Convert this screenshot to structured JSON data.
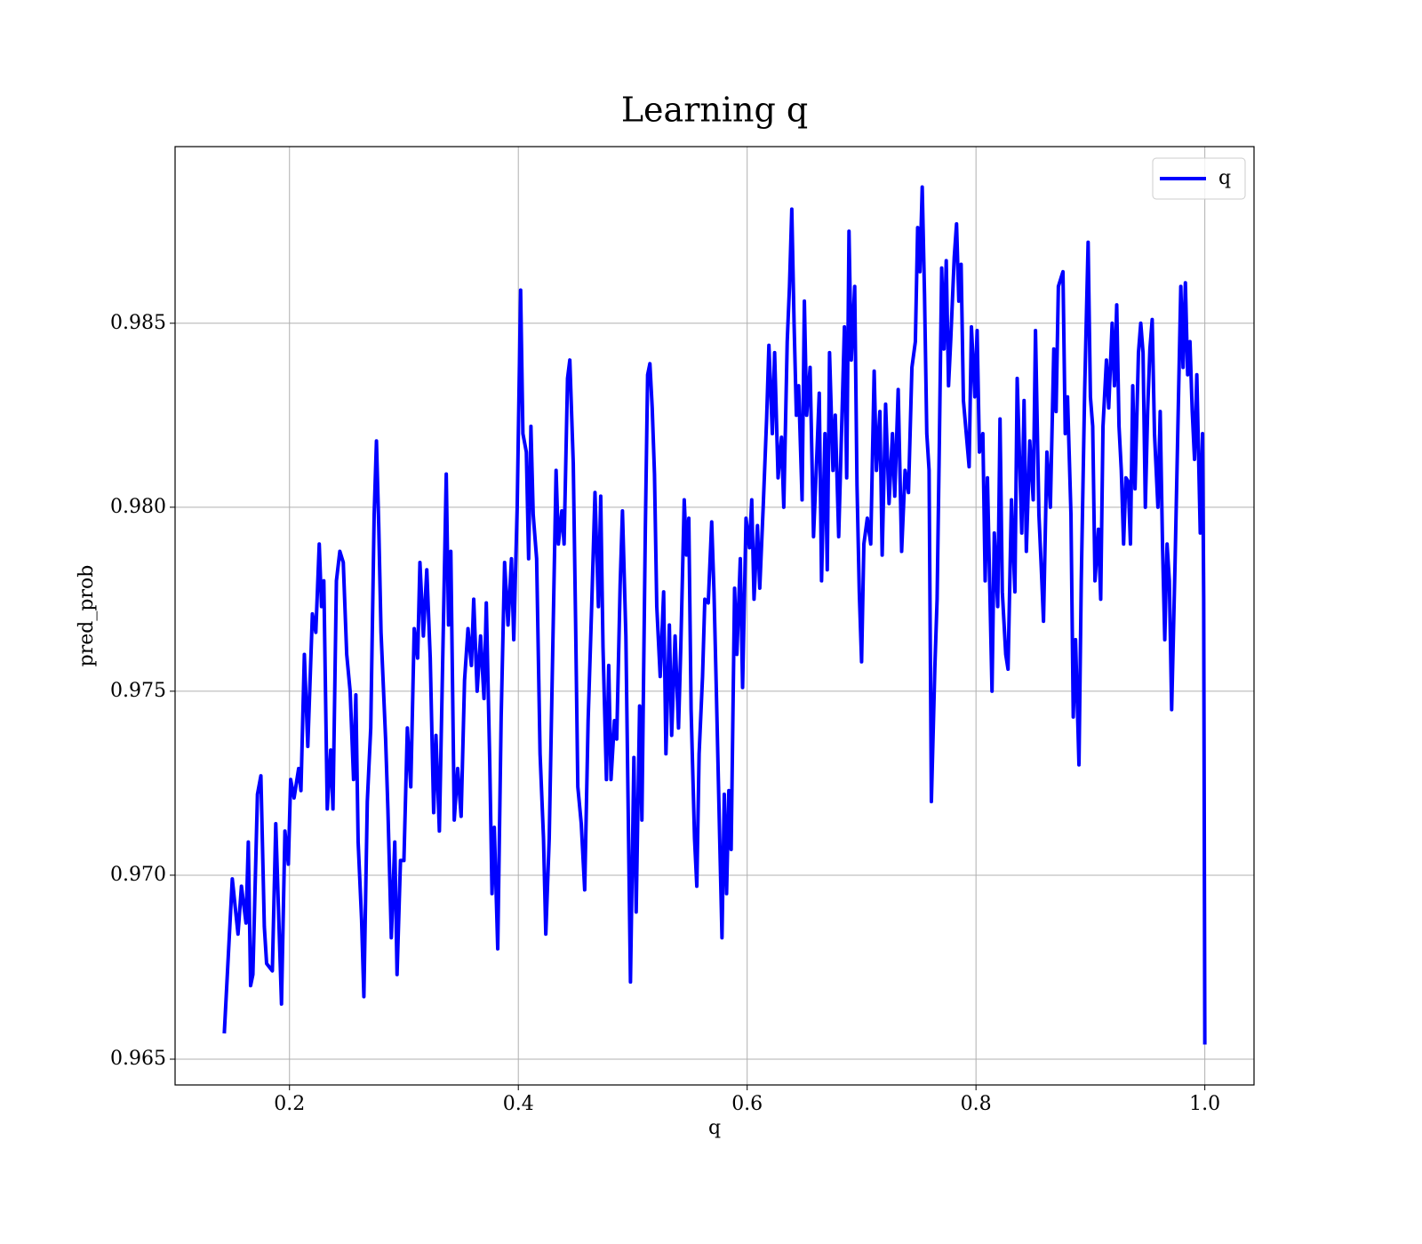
{
  "chart_data": {
    "type": "line",
    "title": "Learning q",
    "xlabel": "q",
    "ylabel": "pred_prob",
    "xlim": [
      0.1,
      1.043
    ],
    "ylim": [
      0.9643,
      0.9898
    ],
    "xticks": [
      0.2,
      0.4,
      0.6,
      0.8,
      {
        "value": 1,
        "label": "1.0"
      }
    ],
    "yticks": [
      0.965,
      {
        "value": 0.97,
        "label": "0.970"
      },
      0.975,
      {
        "value": 0.98,
        "label": "0.980"
      },
      0.985
    ],
    "grid": true,
    "legend": "upper right",
    "x": [
      0.143,
      0.15,
      0.155,
      0.158,
      0.162,
      0.164,
      0.166,
      0.168,
      0.172,
      0.175,
      0.178,
      0.18,
      0.185,
      0.188,
      0.193,
      0.196,
      0.199,
      0.201,
      0.204,
      0.208,
      0.21,
      0.213,
      0.216,
      0.22,
      0.223,
      0.226,
      0.228,
      0.23,
      0.233,
      0.236,
      0.238,
      0.241,
      0.244,
      0.247,
      0.25,
      0.253,
      0.256,
      0.258,
      0.26,
      0.263,
      0.265,
      0.268,
      0.271,
      0.274,
      0.276,
      0.278,
      0.28,
      0.284,
      0.286,
      0.289,
      0.292,
      0.294,
      0.297,
      0.3,
      0.303,
      0.306,
      0.309,
      0.312,
      0.314,
      0.317,
      0.32,
      0.323,
      0.326,
      0.328,
      0.331,
      0.335,
      0.337,
      0.339,
      0.341,
      0.344,
      0.347,
      0.35,
      0.353,
      0.356,
      0.359,
      0.361,
      0.364,
      0.367,
      0.37,
      0.372,
      0.375,
      0.377,
      0.379,
      0.382,
      0.385,
      0.388,
      0.391,
      0.394,
      0.396,
      0.399,
      0.402,
      0.404,
      0.407,
      0.409,
      0.411,
      0.413,
      0.416,
      0.419,
      0.422,
      0.424,
      0.427,
      0.43,
      0.433,
      0.435,
      0.438,
      0.44,
      0.443,
      0.445,
      0.448,
      0.45,
      0.452,
      0.455,
      0.458,
      0.461,
      0.464,
      0.467,
      0.47,
      0.472,
      0.474,
      0.477,
      0.479,
      0.481,
      0.484,
      0.486,
      0.489,
      0.491,
      0.494,
      0.496,
      0.498,
      0.501,
      0.503,
      0.506,
      0.508,
      0.511,
      0.513,
      0.515,
      0.517,
      0.519,
      0.521,
      0.524,
      0.527,
      0.529,
      0.532,
      0.534,
      0.537,
      0.54,
      0.542,
      0.545,
      0.547,
      0.549,
      0.551,
      0.554,
      0.556,
      0.558,
      0.561,
      0.563,
      0.566,
      0.569,
      0.571,
      0.573,
      0.576,
      0.578,
      0.58,
      0.582,
      0.584,
      0.586,
      0.589,
      0.591,
      0.594,
      0.596,
      0.599,
      0.602,
      0.604,
      0.606,
      0.609,
      0.611,
      0.614,
      0.617,
      0.619,
      0.622,
      0.624,
      0.627,
      0.63,
      0.632,
      0.635,
      0.637,
      0.639,
      0.641,
      0.643,
      0.645,
      0.648,
      0.65,
      0.652,
      0.655,
      0.658,
      0.661,
      0.663,
      0.665,
      0.668,
      0.67,
      0.672,
      0.675,
      0.677,
      0.68,
      0.682,
      0.685,
      0.687,
      0.689,
      0.691,
      0.694,
      0.696,
      0.698,
      0.7,
      0.702,
      0.705,
      0.708,
      0.711,
      0.713,
      0.716,
      0.718,
      0.721,
      0.724,
      0.727,
      0.729,
      0.732,
      0.735,
      0.738,
      0.741,
      0.744,
      0.747,
      0.749,
      0.751,
      0.753,
      0.755,
      0.757,
      0.759,
      0.761,
      0.764,
      0.766,
      0.768,
      0.77,
      0.772,
      0.774,
      0.776,
      0.778,
      0.781,
      0.783,
      0.785,
      0.787,
      0.789,
      0.794,
      0.796,
      0.799,
      0.801,
      0.803,
      0.806,
      0.808,
      0.81,
      0.814,
      0.816,
      0.819,
      0.821,
      0.823,
      0.826,
      0.828,
      0.831,
      0.834,
      0.836,
      0.84,
      0.842,
      0.844,
      0.847,
      0.85,
      0.852,
      0.855,
      0.857,
      0.859,
      0.862,
      0.865,
      0.868,
      0.87,
      0.872,
      0.876,
      0.878,
      0.88,
      0.883,
      0.885,
      0.887,
      0.89,
      0.892,
      0.895,
      0.898,
      0.9,
      0.902,
      0.904,
      0.907,
      0.909,
      0.911,
      0.914,
      0.916,
      0.919,
      0.921,
      0.923,
      0.925,
      0.927,
      0.929,
      0.931,
      0.933,
      0.935,
      0.937,
      0.939,
      0.942,
      0.944,
      0.946,
      0.948,
      0.95,
      0.952,
      0.954,
      0.956,
      0.959,
      0.961,
      0.963,
      0.965,
      0.967,
      0.969,
      0.971,
      0.974,
      0.976,
      0.979,
      0.981,
      0.983,
      0.985,
      0.987,
      0.989,
      0.991,
      0.993,
      0.996,
      0.998,
      0.999,
      1.0
    ],
    "series": [
      {
        "name": "q",
        "color": "#0000ff",
        "values": [
          0.9657,
          0.9699,
          0.9684,
          0.9697,
          0.9687,
          0.9709,
          0.967,
          0.9673,
          0.9722,
          0.9727,
          0.9686,
          0.9676,
          0.9674,
          0.9714,
          0.9665,
          0.9712,
          0.9703,
          0.9726,
          0.9721,
          0.9729,
          0.9723,
          0.976,
          0.9735,
          0.9771,
          0.9766,
          0.979,
          0.9773,
          0.978,
          0.9718,
          0.9734,
          0.9718,
          0.978,
          0.9788,
          0.9785,
          0.976,
          0.975,
          0.9726,
          0.9749,
          0.9709,
          0.9688,
          0.9667,
          0.972,
          0.974,
          0.9798,
          0.9818,
          0.9795,
          0.9766,
          0.9737,
          0.9718,
          0.9683,
          0.9709,
          0.9673,
          0.9704,
          0.9704,
          0.974,
          0.9724,
          0.9767,
          0.9759,
          0.9785,
          0.9765,
          0.9783,
          0.9759,
          0.9717,
          0.9738,
          0.9712,
          0.9776,
          0.9809,
          0.9768,
          0.9788,
          0.9715,
          0.9729,
          0.9716,
          0.9753,
          0.9767,
          0.9757,
          0.9775,
          0.975,
          0.9765,
          0.9748,
          0.9774,
          0.9731,
          0.9695,
          0.9713,
          0.968,
          0.9743,
          0.9785,
          0.9768,
          0.9786,
          0.9764,
          0.98,
          0.9859,
          0.982,
          0.9815,
          0.9786,
          0.9822,
          0.9798,
          0.9786,
          0.9733,
          0.971,
          0.9684,
          0.971,
          0.976,
          0.981,
          0.979,
          0.9799,
          0.979,
          0.9835,
          0.984,
          0.9812,
          0.977,
          0.9724,
          0.9714,
          0.9696,
          0.9742,
          0.9772,
          0.9804,
          0.9773,
          0.9803,
          0.9762,
          0.9726,
          0.9757,
          0.9726,
          0.9742,
          0.9737,
          0.9779,
          0.9799,
          0.9765,
          0.9718,
          0.9671,
          0.9732,
          0.969,
          0.9746,
          0.9715,
          0.9794,
          0.9836,
          0.9839,
          0.9827,
          0.9809,
          0.9773,
          0.9754,
          0.9777,
          0.9733,
          0.9768,
          0.9738,
          0.9765,
          0.974,
          0.9762,
          0.9802,
          0.9787,
          0.9797,
          0.9745,
          0.971,
          0.9697,
          0.9733,
          0.9754,
          0.9775,
          0.9774,
          0.9796,
          0.9777,
          0.9751,
          0.971,
          0.9683,
          0.9722,
          0.9695,
          0.9723,
          0.9707,
          0.9778,
          0.976,
          0.9786,
          0.9751,
          0.9797,
          0.9789,
          0.9802,
          0.9775,
          0.9795,
          0.9778,
          0.98,
          0.9824,
          0.9844,
          0.982,
          0.9842,
          0.9808,
          0.9819,
          0.98,
          0.9845,
          0.986,
          0.9881,
          0.985,
          0.9825,
          0.9833,
          0.9802,
          0.9856,
          0.9825,
          0.9838,
          0.9792,
          0.9815,
          0.9831,
          0.978,
          0.982,
          0.9783,
          0.9842,
          0.981,
          0.9825,
          0.9792,
          0.9815,
          0.9849,
          0.9808,
          0.9875,
          0.984,
          0.986,
          0.9806,
          0.9777,
          0.9758,
          0.979,
          0.9797,
          0.979,
          0.9837,
          0.981,
          0.9826,
          0.9787,
          0.9828,
          0.9801,
          0.982,
          0.9803,
          0.9832,
          0.9788,
          0.981,
          0.9804,
          0.9838,
          0.9845,
          0.9876,
          0.9864,
          0.9887,
          0.9858,
          0.982,
          0.981,
          0.972,
          0.9756,
          0.9775,
          0.9818,
          0.9865,
          0.9843,
          0.9867,
          0.9833,
          0.9846,
          0.9868,
          0.9877,
          0.9856,
          0.9866,
          0.9829,
          0.9811,
          0.9849,
          0.983,
          0.9848,
          0.9815,
          0.982,
          0.978,
          0.9808,
          0.975,
          0.9793,
          0.9773,
          0.9824,
          0.9777,
          0.976,
          0.9756,
          0.9802,
          0.9777,
          0.9835,
          0.9793,
          0.9829,
          0.9788,
          0.9818,
          0.9802,
          0.9848,
          0.9798,
          0.9784,
          0.9769,
          0.9815,
          0.98,
          0.9843,
          0.9826,
          0.986,
          0.9864,
          0.982,
          0.983,
          0.9798,
          0.9743,
          0.9764,
          0.973,
          0.978,
          0.9832,
          0.9872,
          0.983,
          0.9822,
          0.978,
          0.9794,
          0.9775,
          0.9822,
          0.984,
          0.9827,
          0.985,
          0.9833,
          0.9855,
          0.9822,
          0.981,
          0.979,
          0.9808,
          0.9807,
          0.979,
          0.9833,
          0.9805,
          0.9842,
          0.985,
          0.9842,
          0.98,
          0.9826,
          0.9843,
          0.9851,
          0.982,
          0.98,
          0.9826,
          0.979,
          0.9764,
          0.979,
          0.978,
          0.9745,
          0.9785,
          0.9815,
          0.986,
          0.9838,
          0.9861,
          0.9836,
          0.9845,
          0.9826,
          0.9813,
          0.9836,
          0.9793,
          0.982,
          0.9775,
          0.9654
        ]
      }
    ]
  }
}
